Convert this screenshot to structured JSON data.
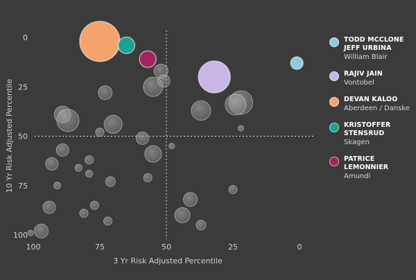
{
  "chart_data": {
    "type": "scatter",
    "title": "",
    "xlabel": "3 Yr Risk Adjusted Percentile",
    "ylabel": "10 Yr Risk Adjusted Percentile",
    "xlim": [
      100,
      0
    ],
    "ylim": [
      0,
      100
    ],
    "x_ticks": [
      100,
      75,
      50,
      25,
      0
    ],
    "y_ticks": [
      0,
      25,
      50,
      75,
      100
    ],
    "reference_lines": {
      "x": 50,
      "y": 50
    },
    "grid": false,
    "legend_position": "right",
    "highlighted": [
      {
        "names": [
          "TODD MCCLONE",
          "JEFF URBINA"
        ],
        "firm": "William Blair",
        "x": 1,
        "y": 13,
        "size": 9,
        "color": "#8ecbe0"
      },
      {
        "names": [
          "RAJIV JAIN"
        ],
        "firm": "Vontobel",
        "x": 32,
        "y": 20,
        "size": 23,
        "color": "#c9b6e6"
      },
      {
        "names": [
          "DEVAN KALOO"
        ],
        "firm": "Aberdeen / Danske",
        "x": 75,
        "y": 2,
        "size": 29,
        "color": "#f5a36c"
      },
      {
        "names": [
          "KRISTOFFER STENSRUD"
        ],
        "firm": "Skagen",
        "x": 65,
        "y": 4,
        "size": 12,
        "color": "#1aa393"
      },
      {
        "names": [
          "PATRICE LEMONNIER"
        ],
        "firm": "Amundi",
        "x": 57,
        "y": 11,
        "size": 12,
        "color": "#a3245f"
      }
    ],
    "others": [
      {
        "x": 52,
        "y": 17,
        "size": 10
      },
      {
        "x": 51,
        "y": 22,
        "size": 9
      },
      {
        "x": 55,
        "y": 25,
        "size": 14
      },
      {
        "x": 73,
        "y": 28,
        "size": 10
      },
      {
        "x": 22,
        "y": 33,
        "size": 17
      },
      {
        "x": 24,
        "y": 34,
        "size": 15
      },
      {
        "x": 37,
        "y": 37,
        "size": 14
      },
      {
        "x": 89,
        "y": 39,
        "size": 12
      },
      {
        "x": 87,
        "y": 42,
        "size": 16
      },
      {
        "x": 70,
        "y": 44,
        "size": 13
      },
      {
        "x": 22,
        "y": 46,
        "size": 4
      },
      {
        "x": 75,
        "y": 48,
        "size": 6
      },
      {
        "x": 59,
        "y": 51,
        "size": 9
      },
      {
        "x": 48,
        "y": 55,
        "size": 4
      },
      {
        "x": 89,
        "y": 57,
        "size": 9
      },
      {
        "x": 55,
        "y": 59,
        "size": 12
      },
      {
        "x": 79,
        "y": 62,
        "size": 6
      },
      {
        "x": 93,
        "y": 64,
        "size": 9
      },
      {
        "x": 83,
        "y": 66,
        "size": 5
      },
      {
        "x": 79,
        "y": 69,
        "size": 5
      },
      {
        "x": 57,
        "y": 71,
        "size": 6
      },
      {
        "x": 71,
        "y": 73,
        "size": 7
      },
      {
        "x": 91,
        "y": 75,
        "size": 5
      },
      {
        "x": 25,
        "y": 77,
        "size": 6
      },
      {
        "x": 41,
        "y": 82,
        "size": 10
      },
      {
        "x": 77,
        "y": 85,
        "size": 6
      },
      {
        "x": 94,
        "y": 86,
        "size": 9
      },
      {
        "x": 81,
        "y": 89,
        "size": 6
      },
      {
        "x": 44,
        "y": 90,
        "size": 11
      },
      {
        "x": 72,
        "y": 93,
        "size": 6
      },
      {
        "x": 37,
        "y": 95,
        "size": 7
      },
      {
        "x": 97,
        "y": 98,
        "size": 10
      },
      {
        "x": 101,
        "y": 99,
        "size": 4
      }
    ]
  },
  "colors": {
    "background": "#3b3b3b",
    "other_bubble": "#9a9a9a"
  }
}
